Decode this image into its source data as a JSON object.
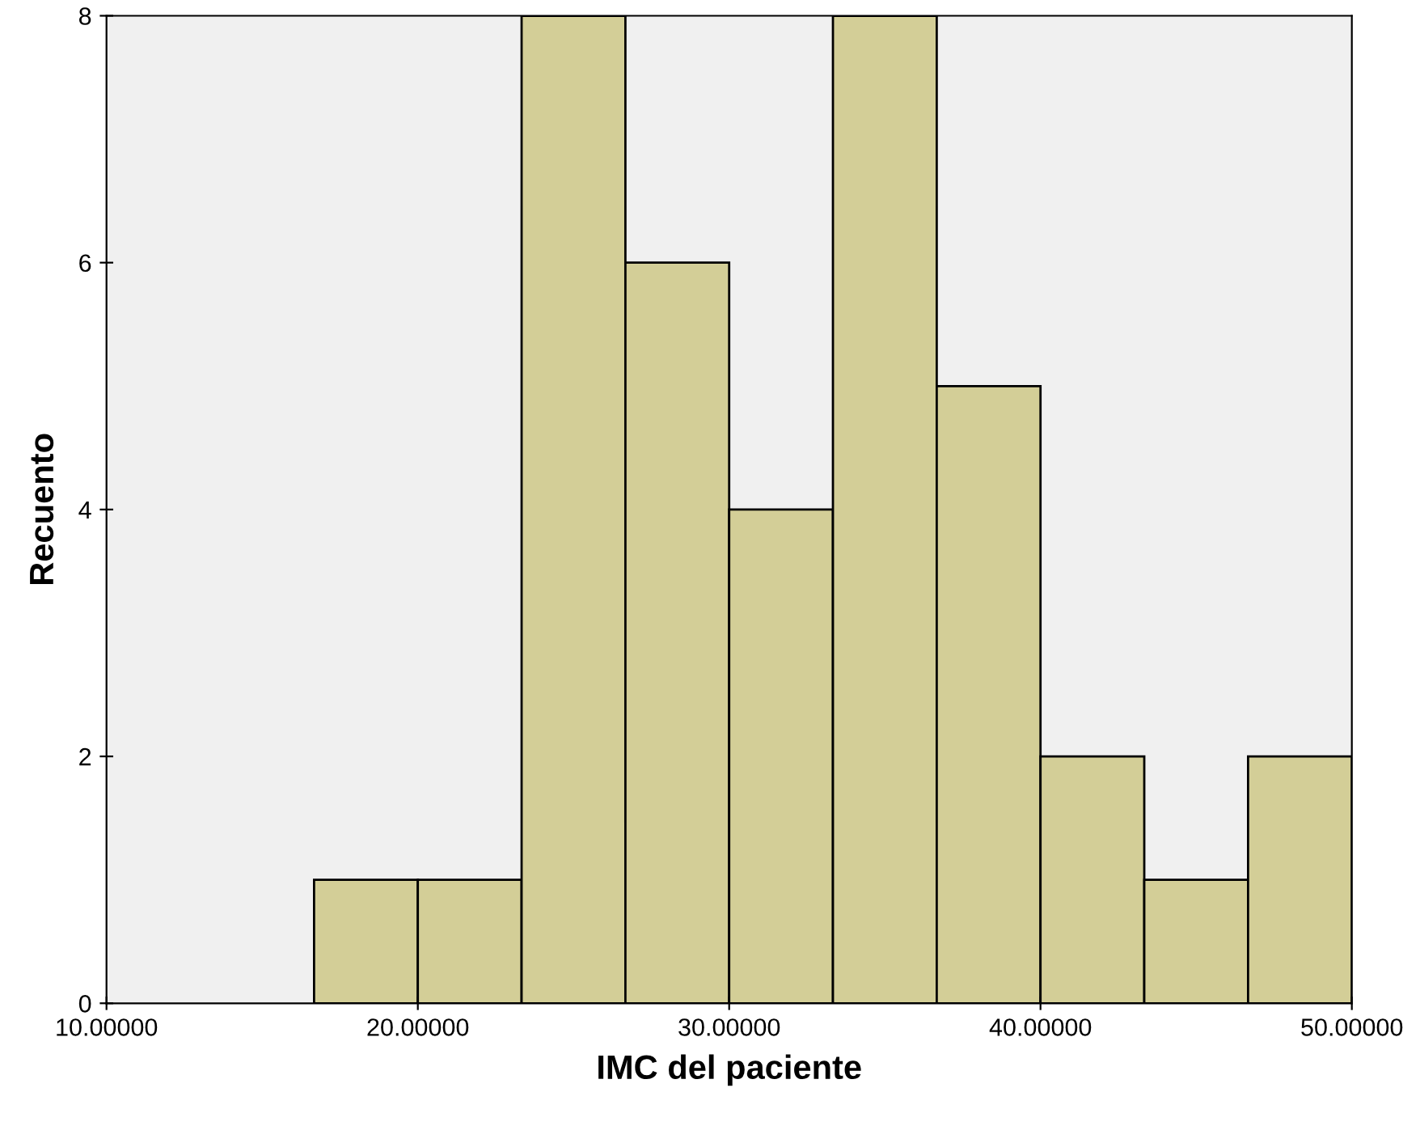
{
  "chart_data": {
    "type": "histogram",
    "xlabel": "IMC del paciente",
    "ylabel": "Recuento",
    "bins": [
      16.667,
      20,
      23.333,
      26.667,
      30,
      33.333,
      36.667,
      40,
      43.333,
      46.667,
      50
    ],
    "values": [
      1,
      1,
      8,
      6,
      4,
      8,
      5,
      2,
      1,
      2
    ],
    "color": "#d3ce97",
    "xlim": [
      10,
      50
    ],
    "xticks": [
      {
        "value": 10,
        "label": "10.00000"
      },
      {
        "value": 20,
        "label": "20.00000"
      },
      {
        "value": 30,
        "label": "30.00000"
      },
      {
        "value": 40,
        "label": "40.00000"
      },
      {
        "value": 50,
        "label": "50.00000"
      }
    ],
    "ylim": [
      0,
      8
    ],
    "yticks": [
      0,
      2,
      4,
      6,
      8
    ],
    "grid": false
  }
}
